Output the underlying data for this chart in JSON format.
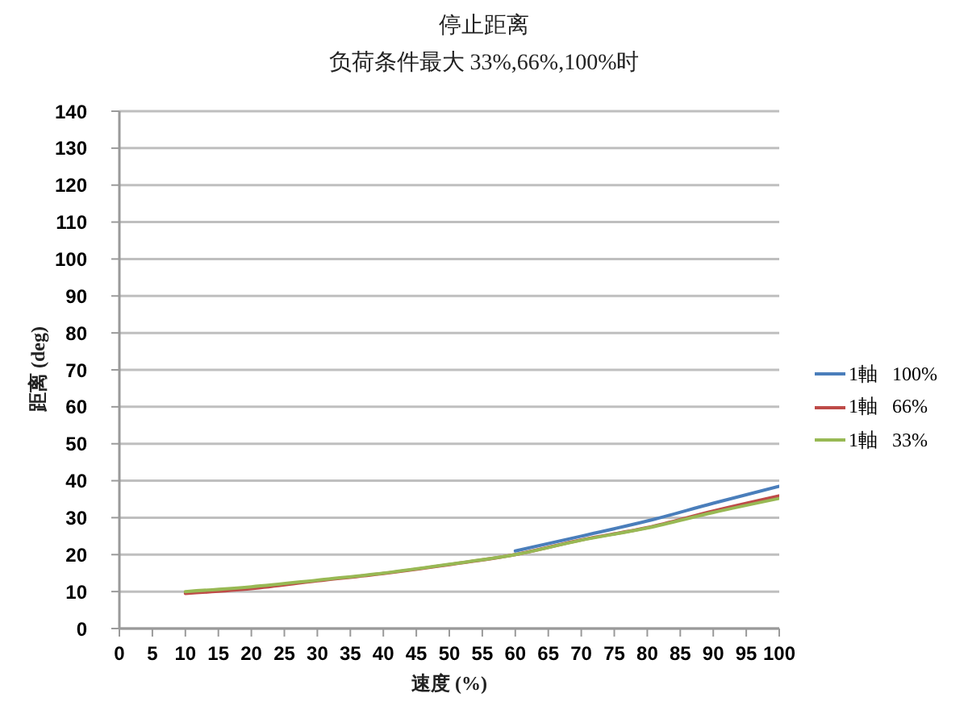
{
  "chart_data": {
    "type": "line",
    "title": "停止距离",
    "subtitle": "负荷条件最大 33%,66%,100%时",
    "xlabel": "速度 (%)",
    "ylabel": "距离 (deg)",
    "x": [
      10,
      20,
      30,
      40,
      50,
      60,
      70,
      80,
      90,
      100
    ],
    "series": [
      {
        "name": "1軸 100%",
        "color": "#4a7ebb",
        "values": [
          null,
          null,
          null,
          null,
          null,
          21.0,
          25.0,
          29.1,
          33.9,
          38.5
        ]
      },
      {
        "name": "1軸 66%",
        "color": "#be4b48",
        "values": [
          9.5,
          10.8,
          12.9,
          14.9,
          17.3,
          20.0,
          24.0,
          27.3,
          31.8,
          35.9
        ]
      },
      {
        "name": "1軸 33%",
        "color": "#98b954",
        "values": [
          10.0,
          11.3,
          13.1,
          15.0,
          17.4,
          20.0,
          23.9,
          27.2,
          31.4,
          35.2
        ]
      }
    ],
    "xlim": [
      0,
      100
    ],
    "xticks": [
      0,
      5,
      10,
      15,
      20,
      25,
      30,
      35,
      40,
      45,
      50,
      55,
      60,
      65,
      70,
      75,
      80,
      85,
      90,
      95,
      100
    ],
    "ylim": [
      0,
      140
    ],
    "yticks": [
      0,
      10,
      20,
      30,
      40,
      50,
      60,
      70,
      80,
      90,
      100,
      110,
      120,
      130,
      140
    ],
    "grid": "y",
    "legend": "right",
    "marker": "none"
  }
}
